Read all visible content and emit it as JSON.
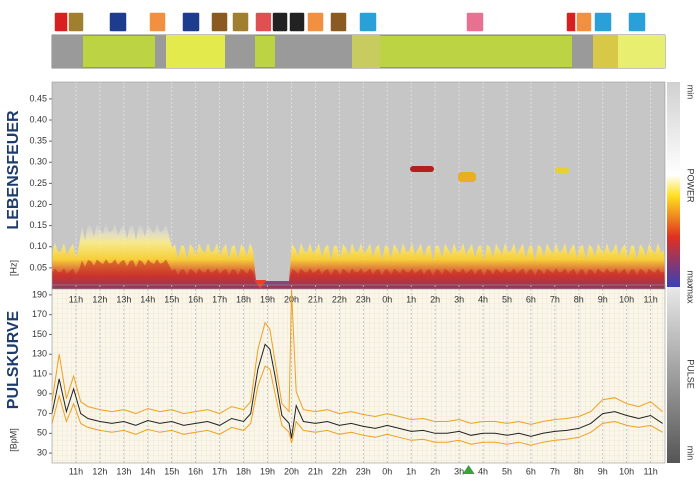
{
  "chart_data": [
    {
      "type": "spectrogram",
      "title": "LEBENSFEUER",
      "ylabel": "[Hz]",
      "xlim": [
        10,
        35.6
      ],
      "xticks": [
        {
          "value": 11,
          "label": "11h"
        },
        {
          "value": 12,
          "label": "12h"
        },
        {
          "value": 13,
          "label": "13h"
        },
        {
          "value": 14,
          "label": "14h"
        },
        {
          "value": 15,
          "label": "15h"
        },
        {
          "value": 16,
          "label": "16h"
        },
        {
          "value": 17,
          "label": "17h"
        },
        {
          "value": 18,
          "label": "18h"
        },
        {
          "value": 19,
          "label": "19h"
        },
        {
          "value": 20,
          "label": "20h"
        },
        {
          "value": 21,
          "label": "21h"
        },
        {
          "value": 22,
          "label": "22h"
        },
        {
          "value": 23,
          "label": "23h"
        },
        {
          "value": 24,
          "label": "0h"
        },
        {
          "value": 25,
          "label": "1h"
        },
        {
          "value": 26,
          "label": "2h"
        },
        {
          "value": 27,
          "label": "3h"
        },
        {
          "value": 28,
          "label": "4h"
        },
        {
          "value": 29,
          "label": "5h"
        },
        {
          "value": 30,
          "label": "6h"
        },
        {
          "value": 31,
          "label": "7h"
        },
        {
          "value": 32,
          "label": "8h"
        },
        {
          "value": 33,
          "label": "9h"
        },
        {
          "value": 34,
          "label": "10h"
        },
        {
          "value": 35,
          "label": "11h"
        }
      ],
      "ylim": [
        0,
        0.49
      ],
      "yticks": [
        0.05,
        {
          "value": 0.1,
          "label": "0.10"
        },
        0.15,
        {
          "value": 0.2,
          "label": "0.20"
        },
        0.25,
        {
          "value": 0.3,
          "label": "0.30"
        },
        0.35,
        {
          "value": 0.4,
          "label": "0.40"
        },
        0.45
      ],
      "colorbar_labels": [
        "min",
        "POWER",
        "max"
      ]
    },
    {
      "type": "line",
      "title": "PULSKURVE",
      "ylabel": "[BpM]",
      "xlim": [
        10,
        35.6
      ],
      "xticks": [
        {
          "value": 11,
          "label": "11h"
        },
        {
          "value": 12,
          "label": "12h"
        },
        {
          "value": 13,
          "label": "13h"
        },
        {
          "value": 14,
          "label": "14h"
        },
        {
          "value": 15,
          "label": "15h"
        },
        {
          "value": 16,
          "label": "16h"
        },
        {
          "value": 17,
          "label": "17h"
        },
        {
          "value": 18,
          "label": "18h"
        },
        {
          "value": 19,
          "label": "19h"
        },
        {
          "value": 20,
          "label": "20h"
        },
        {
          "value": 21,
          "label": "21h"
        },
        {
          "value": 22,
          "label": "22h"
        },
        {
          "value": 23,
          "label": "23h"
        },
        {
          "value": 24,
          "label": "0h"
        },
        {
          "value": 25,
          "label": "1h"
        },
        {
          "value": 26,
          "label": "2h"
        },
        {
          "value": 27,
          "label": "3h"
        },
        {
          "value": 28,
          "label": "4h"
        },
        {
          "value": 29,
          "label": "5h"
        },
        {
          "value": 30,
          "label": "6h"
        },
        {
          "value": 31,
          "label": "7h"
        },
        {
          "value": 32,
          "label": "8h"
        },
        {
          "value": 33,
          "label": "9h"
        },
        {
          "value": 34,
          "label": "10h"
        },
        {
          "value": 35,
          "label": "11h"
        }
      ],
      "ylim": [
        20,
        200
      ],
      "yticks": [
        30,
        50,
        70,
        90,
        110,
        130,
        150,
        170,
        190
      ],
      "x": [
        10,
        10.3,
        10.6,
        10.9,
        11.2,
        11.5,
        12,
        12.5,
        13,
        13.5,
        14,
        14.5,
        15,
        15.5,
        16,
        16.5,
        17,
        17.5,
        18,
        18.3,
        18.6,
        18.9,
        19.1,
        19.3,
        19.6,
        19.9,
        20,
        20.2,
        20.5,
        21,
        21.5,
        22,
        22.5,
        23,
        23.5,
        24,
        24.5,
        25,
        25.5,
        26,
        26.5,
        27,
        27.5,
        28,
        28.5,
        29,
        29.5,
        30,
        30.5,
        31,
        31.5,
        32,
        32.5,
        33,
        33.5,
        34,
        34.5,
        35,
        35.5
      ],
      "series": [
        {
          "color": "#f0a020",
          "values": [
            82,
            130,
            85,
            108,
            82,
            77,
            74,
            72,
            74,
            70,
            75,
            72,
            74,
            70,
            72,
            74,
            70,
            77,
            74,
            82,
            135,
            162,
            155,
            125,
            80,
            72,
            195,
            92,
            74,
            72,
            74,
            70,
            72,
            69,
            67,
            70,
            67,
            64,
            65,
            62,
            62,
            64,
            60,
            62,
            62,
            60,
            62,
            59,
            62,
            64,
            65,
            67,
            72,
            84,
            86,
            80,
            77,
            82,
            72
          ]
        },
        {
          "color": "#222222",
          "values": [
            70,
            105,
            72,
            95,
            70,
            65,
            62,
            60,
            62,
            58,
            63,
            60,
            62,
            58,
            60,
            62,
            58,
            65,
            62,
            70,
            115,
            140,
            135,
            110,
            68,
            60,
            45,
            78,
            62,
            60,
            62,
            58,
            60,
            57,
            55,
            58,
            55,
            52,
            53,
            50,
            50,
            52,
            48,
            50,
            50,
            48,
            50,
            47,
            50,
            52,
            53,
            55,
            60,
            70,
            72,
            68,
            65,
            68,
            60
          ]
        },
        {
          "color": "#f0a020",
          "values": [
            60,
            88,
            62,
            80,
            60,
            56,
            53,
            51,
            53,
            49,
            54,
            51,
            53,
            49,
            51,
            53,
            49,
            56,
            53,
            60,
            98,
            118,
            115,
            92,
            58,
            51,
            40,
            62,
            53,
            51,
            53,
            49,
            51,
            48,
            46,
            49,
            46,
            43,
            44,
            41,
            41,
            43,
            39,
            41,
            41,
            39,
            41,
            38,
            41,
            43,
            44,
            46,
            51,
            60,
            62,
            58,
            56,
            58,
            51
          ]
        }
      ],
      "markers": [
        {
          "x": 18.7,
          "color": "#e8402a",
          "position": "top"
        },
        {
          "x": 27.4,
          "color": "#3aa040",
          "position": "bottom"
        }
      ],
      "colorbar_labels": [
        "max",
        "PULSE",
        "min"
      ]
    }
  ]
}
